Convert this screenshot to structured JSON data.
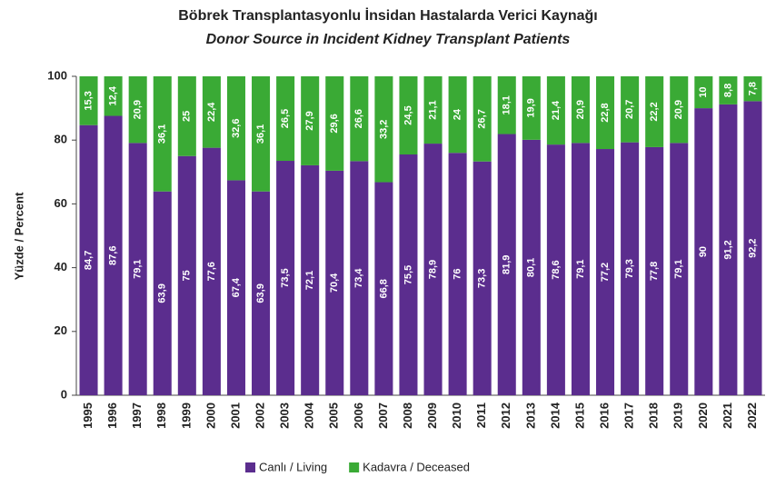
{
  "chart_data": {
    "type": "stacked_bar",
    "title": "Böbrek Transplantasyonlu İnsidan Hastalarda Verici Kaynağı",
    "subtitle": "Donor Source in Incident Kidney Transplant Patients",
    "y_label": "Yüzde / Percent",
    "categories": [
      "1995",
      "1996",
      "1997",
      "1998",
      "1999",
      "2000",
      "2001",
      "2002",
      "2003",
      "2004",
      "2005",
      "2006",
      "2007",
      "2008",
      "2009",
      "2010",
      "2011",
      "2012",
      "2013",
      "2014",
      "2015",
      "2016",
      "2017",
      "2018",
      "2019",
      "2020",
      "2021",
      "2022"
    ],
    "series": [
      {
        "name": "Canlı / Living",
        "color": "#5b2d8e",
        "values": [
          84.7,
          87.6,
          79.1,
          63.9,
          75,
          77.6,
          67.4,
          63.9,
          73.5,
          72.1,
          70.4,
          73.4,
          66.8,
          75.5,
          78.9,
          76,
          73.3,
          81.9,
          80.1,
          78.6,
          79.1,
          77.2,
          79.3,
          77.8,
          79.1,
          90,
          91.2,
          92.2
        ],
        "value_labels": [
          "84,7",
          "87,6",
          "79,1",
          "63,9",
          "75",
          "77,6",
          "67,4",
          "63,9",
          "73,5",
          "72,1",
          "70,4",
          "73,4",
          "66,8",
          "75,5",
          "78,9",
          "76",
          "73,3",
          "81,9",
          "80,1",
          "78,6",
          "79,1",
          "77,2",
          "79,3",
          "77,8",
          "79,1",
          "90",
          "91,2",
          "92,2"
        ]
      },
      {
        "name": "Kadavra / Deceased",
        "color": "#3aaa35",
        "values": [
          15.3,
          12.4,
          20.9,
          36.1,
          25,
          22.4,
          32.6,
          36.1,
          26.5,
          27.9,
          29.6,
          26.6,
          33.2,
          24.5,
          21.1,
          24,
          26.7,
          18.1,
          19.9,
          21.4,
          20.9,
          22.8,
          20.7,
          22.2,
          20.9,
          10,
          8.8,
          7.8
        ],
        "value_labels": [
          "15,3",
          "12,4",
          "20,9",
          "36,1",
          "25",
          "22,4",
          "32,6",
          "36,1",
          "26,5",
          "27,9",
          "29,6",
          "26,6",
          "33,2",
          "24,5",
          "21,1",
          "24",
          "26,7",
          "18,1",
          "19,9",
          "21,4",
          "20,9",
          "22,8",
          "20,7",
          "22,2",
          "20,9",
          "10",
          "8,8",
          "7,8"
        ]
      }
    ],
    "ylim": [
      0,
      100
    ],
    "yticks": [
      0,
      20,
      40,
      60,
      80,
      100
    ],
    "legend": "bottom"
  }
}
